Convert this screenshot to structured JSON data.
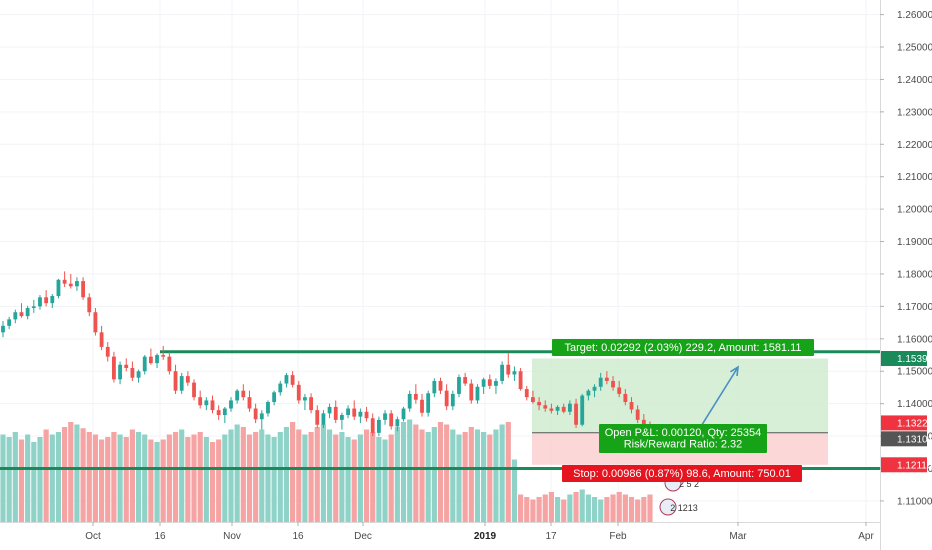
{
  "chart_data": {
    "type": "candlestick",
    "instrument": "EURUSD",
    "y_axis": {
      "ticks": [
        "1.26000",
        "1.25000",
        "1.24000",
        "1.23000",
        "1.22000",
        "1.21000",
        "1.20000",
        "1.19000",
        "1.18000",
        "1.17000",
        "1.16000",
        "1.15000",
        "1.14000",
        "1.13000",
        "1.12000",
        "1.11000"
      ],
      "range": [
        1.1035,
        1.2645
      ]
    },
    "x_axis": {
      "ticks": [
        {
          "label": "Oct",
          "bold": false
        },
        {
          "label": "16",
          "bold": false
        },
        {
          "label": "Nov",
          "bold": false
        },
        {
          "label": "16",
          "bold": false
        },
        {
          "label": "Dec",
          "bold": false
        },
        {
          "label": "2019",
          "bold": true
        },
        {
          "label": "17",
          "bold": false
        },
        {
          "label": "Feb",
          "bold": false
        },
        {
          "label": "Mar",
          "bold": false
        },
        {
          "label": "Apr",
          "bold": false
        }
      ]
    },
    "price_tags": [
      {
        "value": "1.15393",
        "color": "#1b8a5a"
      },
      {
        "value": "1.13221",
        "color": "#ef3340"
      },
      {
        "value": "1.13101",
        "color": "#555555"
      },
      {
        "value": "1.12115",
        "color": "#ef3340"
      }
    ],
    "horizontal_lines": [
      {
        "name": "resistance",
        "price": 1.156,
        "color": "#1b8a5a"
      },
      {
        "name": "support",
        "price": 1.12,
        "color": "#1b8a5a"
      }
    ],
    "position": {
      "entry": 1.13101,
      "target": 1.15393,
      "stop": 1.12115,
      "target_label": "Target: 0.02292 (2.03%) 229.2, Amount: 1581.11",
      "stop_label": "Stop: 0.00986 (0.87%) 98.6, Amount: 750.01",
      "pnl_label": "Open P&L: 0.00120, Qty: 25354",
      "rr_label": "Risk/Reward Ratio: 2.32"
    },
    "event_badges": [
      "2 5 2",
      "2 1213"
    ],
    "colors": {
      "up": "#26a69a",
      "down": "#ef5350",
      "up_volume": "#8fd3c8",
      "down_volume": "#f5a3a3",
      "profit_zone": "#cfeccf",
      "loss_zone": "#fbd3d3"
    },
    "candles": [
      [
        1.162,
        1.1655,
        1.1605,
        1.164
      ],
      [
        1.164,
        1.1668,
        1.163,
        1.166
      ],
      [
        1.166,
        1.169,
        1.1648,
        1.1682
      ],
      [
        1.1682,
        1.171,
        1.1665,
        1.167
      ],
      [
        1.167,
        1.1702,
        1.166,
        1.1695
      ],
      [
        1.1695,
        1.172,
        1.168,
        1.17
      ],
      [
        1.17,
        1.1735,
        1.169,
        1.1728
      ],
      [
        1.1728,
        1.175,
        1.17,
        1.171
      ],
      [
        1.171,
        1.1738,
        1.1695,
        1.1732
      ],
      [
        1.1732,
        1.1785,
        1.1725,
        1.1782
      ],
      [
        1.1782,
        1.1808,
        1.176,
        1.177
      ],
      [
        1.177,
        1.18,
        1.1755,
        1.1762
      ],
      [
        1.1762,
        1.179,
        1.1748,
        1.1778
      ],
      [
        1.1778,
        1.179,
        1.172,
        1.1728
      ],
      [
        1.1728,
        1.174,
        1.167,
        1.1682
      ],
      [
        1.1682,
        1.1695,
        1.161,
        1.162
      ],
      [
        1.162,
        1.164,
        1.1565,
        1.1575
      ],
      [
        1.1575,
        1.159,
        1.153,
        1.1545
      ],
      [
        1.1545,
        1.156,
        1.1465,
        1.1475
      ],
      [
        1.1475,
        1.153,
        1.146,
        1.152
      ],
      [
        1.152,
        1.154,
        1.15,
        1.151
      ],
      [
        1.151,
        1.153,
        1.147,
        1.148
      ],
      [
        1.148,
        1.1505,
        1.1465,
        1.15
      ],
      [
        1.15,
        1.155,
        1.149,
        1.1545
      ],
      [
        1.1545,
        1.157,
        1.152,
        1.1525
      ],
      [
        1.1525,
        1.1555,
        1.151,
        1.155
      ],
      [
        1.155,
        1.1578,
        1.1535,
        1.1545
      ],
      [
        1.1545,
        1.156,
        1.149,
        1.15
      ],
      [
        1.15,
        1.152,
        1.143,
        1.144
      ],
      [
        1.144,
        1.1495,
        1.143,
        1.1485
      ],
      [
        1.1485,
        1.15,
        1.1455,
        1.1465
      ],
      [
        1.1465,
        1.1475,
        1.141,
        1.142
      ],
      [
        1.142,
        1.144,
        1.1385,
        1.1395
      ],
      [
        1.1395,
        1.142,
        1.138,
        1.141
      ],
      [
        1.141,
        1.1425,
        1.137,
        1.138
      ],
      [
        1.138,
        1.1395,
        1.135,
        1.1365
      ],
      [
        1.1365,
        1.139,
        1.134,
        1.1385
      ],
      [
        1.1385,
        1.142,
        1.1375,
        1.141
      ],
      [
        1.141,
        1.1445,
        1.14,
        1.144
      ],
      [
        1.144,
        1.146,
        1.141,
        1.142
      ],
      [
        1.142,
        1.144,
        1.1375,
        1.1385
      ],
      [
        1.1385,
        1.14,
        1.134,
        1.1352
      ],
      [
        1.1352,
        1.138,
        1.132,
        1.137
      ],
      [
        1.137,
        1.141,
        1.136,
        1.1405
      ],
      [
        1.1405,
        1.144,
        1.1395,
        1.1435
      ],
      [
        1.1435,
        1.147,
        1.1425,
        1.1462
      ],
      [
        1.1462,
        1.1495,
        1.145,
        1.1488
      ],
      [
        1.1488,
        1.15,
        1.145,
        1.1458
      ],
      [
        1.1458,
        1.147,
        1.14,
        1.141
      ],
      [
        1.141,
        1.143,
        1.138,
        1.142
      ],
      [
        1.142,
        1.1432,
        1.137,
        1.138
      ],
      [
        1.138,
        1.1395,
        1.1325,
        1.1335
      ],
      [
        1.1335,
        1.138,
        1.1325,
        1.137
      ],
      [
        1.137,
        1.14,
        1.1355,
        1.139
      ],
      [
        1.139,
        1.141,
        1.134,
        1.135
      ],
      [
        1.135,
        1.1372,
        1.132,
        1.1365
      ],
      [
        1.1365,
        1.1395,
        1.1355,
        1.1385
      ],
      [
        1.1385,
        1.141,
        1.135,
        1.136
      ],
      [
        1.136,
        1.1385,
        1.134,
        1.1375
      ],
      [
        1.1375,
        1.139,
        1.1345,
        1.1355
      ],
      [
        1.1355,
        1.137,
        1.13,
        1.131
      ],
      [
        1.131,
        1.136,
        1.13,
        1.135
      ],
      [
        1.135,
        1.138,
        1.1335,
        1.137
      ],
      [
        1.137,
        1.138,
        1.132,
        1.133
      ],
      [
        1.133,
        1.136,
        1.1315,
        1.1352
      ],
      [
        1.1352,
        1.139,
        1.1345,
        1.1385
      ],
      [
        1.1385,
        1.144,
        1.1375,
        1.143
      ],
      [
        1.143,
        1.146,
        1.14,
        1.1412
      ],
      [
        1.1412,
        1.143,
        1.136,
        1.1372
      ],
      [
        1.1372,
        1.144,
        1.136,
        1.1432
      ],
      [
        1.1432,
        1.1478,
        1.142,
        1.147
      ],
      [
        1.147,
        1.148,
        1.143,
        1.144
      ],
      [
        1.144,
        1.146,
        1.138,
        1.1392
      ],
      [
        1.1392,
        1.144,
        1.138,
        1.143
      ],
      [
        1.143,
        1.149,
        1.142,
        1.1482
      ],
      [
        1.1482,
        1.1495,
        1.1455,
        1.1462
      ],
      [
        1.1462,
        1.1475,
        1.14,
        1.141
      ],
      [
        1.141,
        1.146,
        1.14,
        1.1452
      ],
      [
        1.1452,
        1.148,
        1.143,
        1.1475
      ],
      [
        1.1475,
        1.149,
        1.1445,
        1.1455
      ],
      [
        1.1455,
        1.1478,
        1.143,
        1.147
      ],
      [
        1.147,
        1.153,
        1.146,
        1.152
      ],
      [
        1.152,
        1.1555,
        1.148,
        1.149
      ],
      [
        1.149,
        1.1515,
        1.147,
        1.15
      ],
      [
        1.15,
        1.151,
        1.144,
        1.1445
      ],
      [
        1.1445,
        1.1455,
        1.141,
        1.142
      ],
      [
        1.142,
        1.144,
        1.14,
        1.1405
      ],
      [
        1.1405,
        1.142,
        1.138,
        1.1395
      ],
      [
        1.1395,
        1.141,
        1.1375,
        1.1385
      ],
      [
        1.1385,
        1.14,
        1.137,
        1.1378
      ],
      [
        1.1378,
        1.1395,
        1.1365,
        1.139
      ],
      [
        1.139,
        1.14,
        1.137,
        1.1375
      ],
      [
        1.1375,
        1.141,
        1.1365,
        1.14
      ],
      [
        1.14,
        1.1415,
        1.1325,
        1.1335
      ],
      [
        1.1335,
        1.143,
        1.133,
        1.1425
      ],
      [
        1.1425,
        1.1445,
        1.141,
        1.144
      ],
      [
        1.144,
        1.146,
        1.142,
        1.1452
      ],
      [
        1.1452,
        1.1495,
        1.144,
        1.148
      ],
      [
        1.148,
        1.15,
        1.146,
        1.147
      ],
      [
        1.147,
        1.1485,
        1.144,
        1.145
      ],
      [
        1.145,
        1.147,
        1.142,
        1.143
      ],
      [
        1.143,
        1.1445,
        1.1395,
        1.1405
      ],
      [
        1.1405,
        1.142,
        1.137,
        1.1382
      ],
      [
        1.1382,
        1.1395,
        1.134,
        1.135
      ],
      [
        1.135,
        1.1368,
        1.1325,
        1.1332
      ],
      [
        1.1332,
        1.1345,
        1.1305,
        1.131
      ]
    ],
    "volumes": [
      70,
      68,
      72,
      66,
      70,
      64,
      68,
      74,
      70,
      72,
      76,
      80,
      78,
      75,
      72,
      70,
      66,
      68,
      72,
      70,
      68,
      74,
      72,
      70,
      66,
      64,
      66,
      70,
      72,
      74,
      68,
      70,
      72,
      68,
      64,
      66,
      70,
      74,
      78,
      76,
      70,
      72,
      74,
      70,
      68,
      72,
      76,
      80,
      74,
      70,
      72,
      76,
      78,
      74,
      70,
      72,
      68,
      66,
      70,
      74,
      72,
      68,
      66,
      70,
      76,
      80,
      82,
      78,
      74,
      72,
      76,
      80,
      78,
      74,
      70,
      72,
      76,
      74,
      72,
      70,
      74,
      78,
      80,
      50,
      22,
      20,
      18,
      20,
      22,
      24,
      20,
      18,
      22,
      24,
      26,
      22,
      20,
      18,
      20,
      22,
      24,
      22,
      20,
      18,
      20,
      22
    ]
  }
}
